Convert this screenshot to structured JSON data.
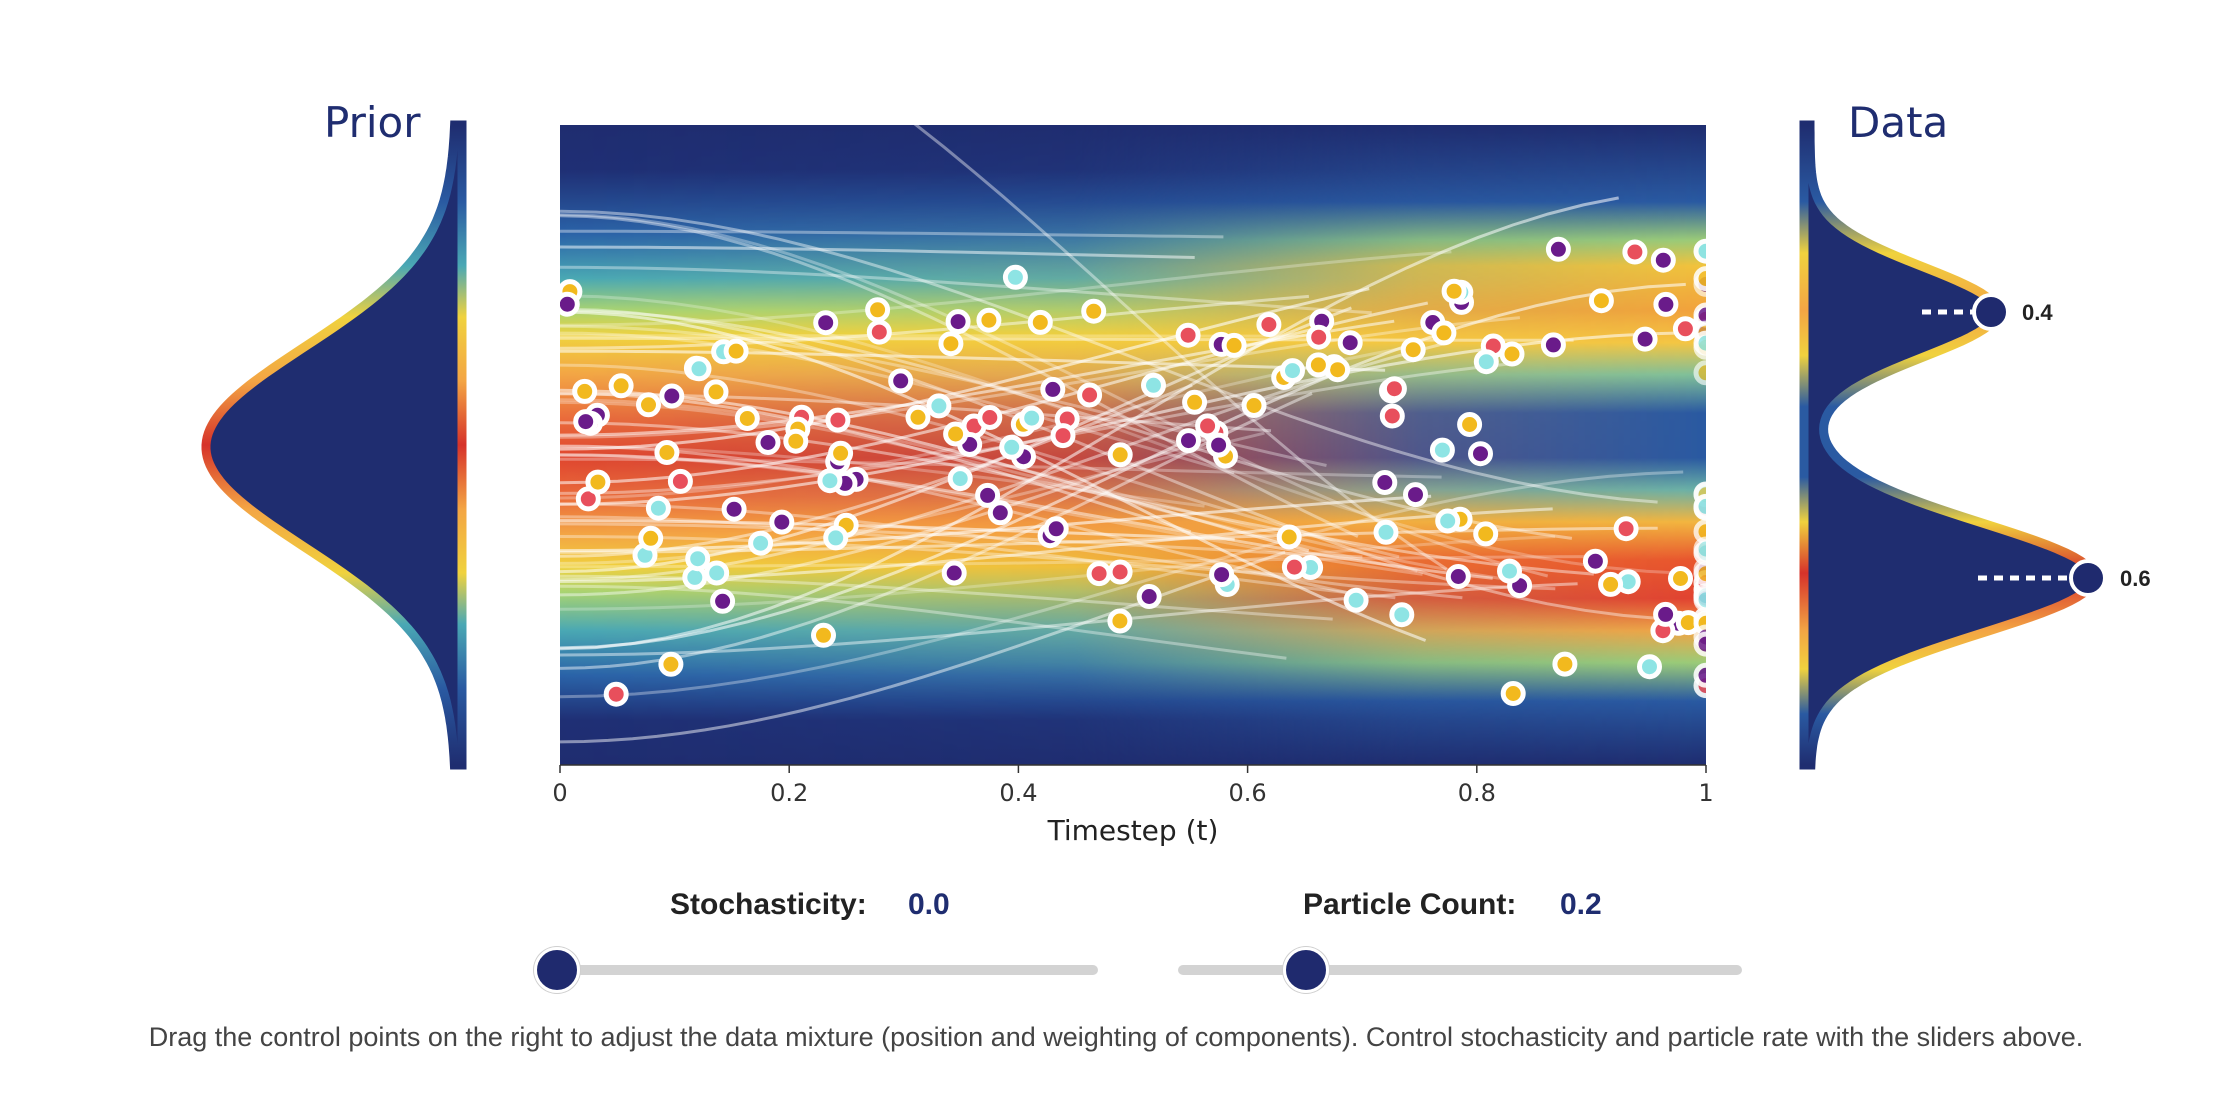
{
  "prior": {
    "title": "Prior"
  },
  "data_panel": {
    "title": "Data",
    "control_points": [
      {
        "name": "upper-component",
        "weight_label": "0.4"
      },
      {
        "name": "lower-component",
        "weight_label": "0.6"
      }
    ]
  },
  "plot": {
    "x_axis_title": "Timestep (t)",
    "x_ticks": [
      "0",
      "0.2",
      "0.4",
      "0.6",
      "0.8",
      "1"
    ],
    "x_tick_values": [
      0,
      0.2,
      0.4,
      0.6,
      0.8,
      1
    ],
    "particle_colors": [
      "#f2b91e",
      "#e84f5c",
      "#8ee4e4",
      "#6a1b8a"
    ],
    "colormap": [
      "#1f2d70",
      "#2a60a8",
      "#3a9ac0",
      "#8cc77a",
      "#f0d83a",
      "#f3a33a",
      "#e8552e",
      "#d6322a"
    ]
  },
  "controls": {
    "stochasticity": {
      "label": "Stochasticity:",
      "value_text": "0.0",
      "value": 0.0
    },
    "particle_count": {
      "label": "Particle Count:",
      "value_text": "0.2",
      "value": 0.2
    }
  },
  "instructions": "Drag the control points on the right to adjust the data mixture (position and weighting of components). Control stochasticity and particle rate with the sliders above."
}
